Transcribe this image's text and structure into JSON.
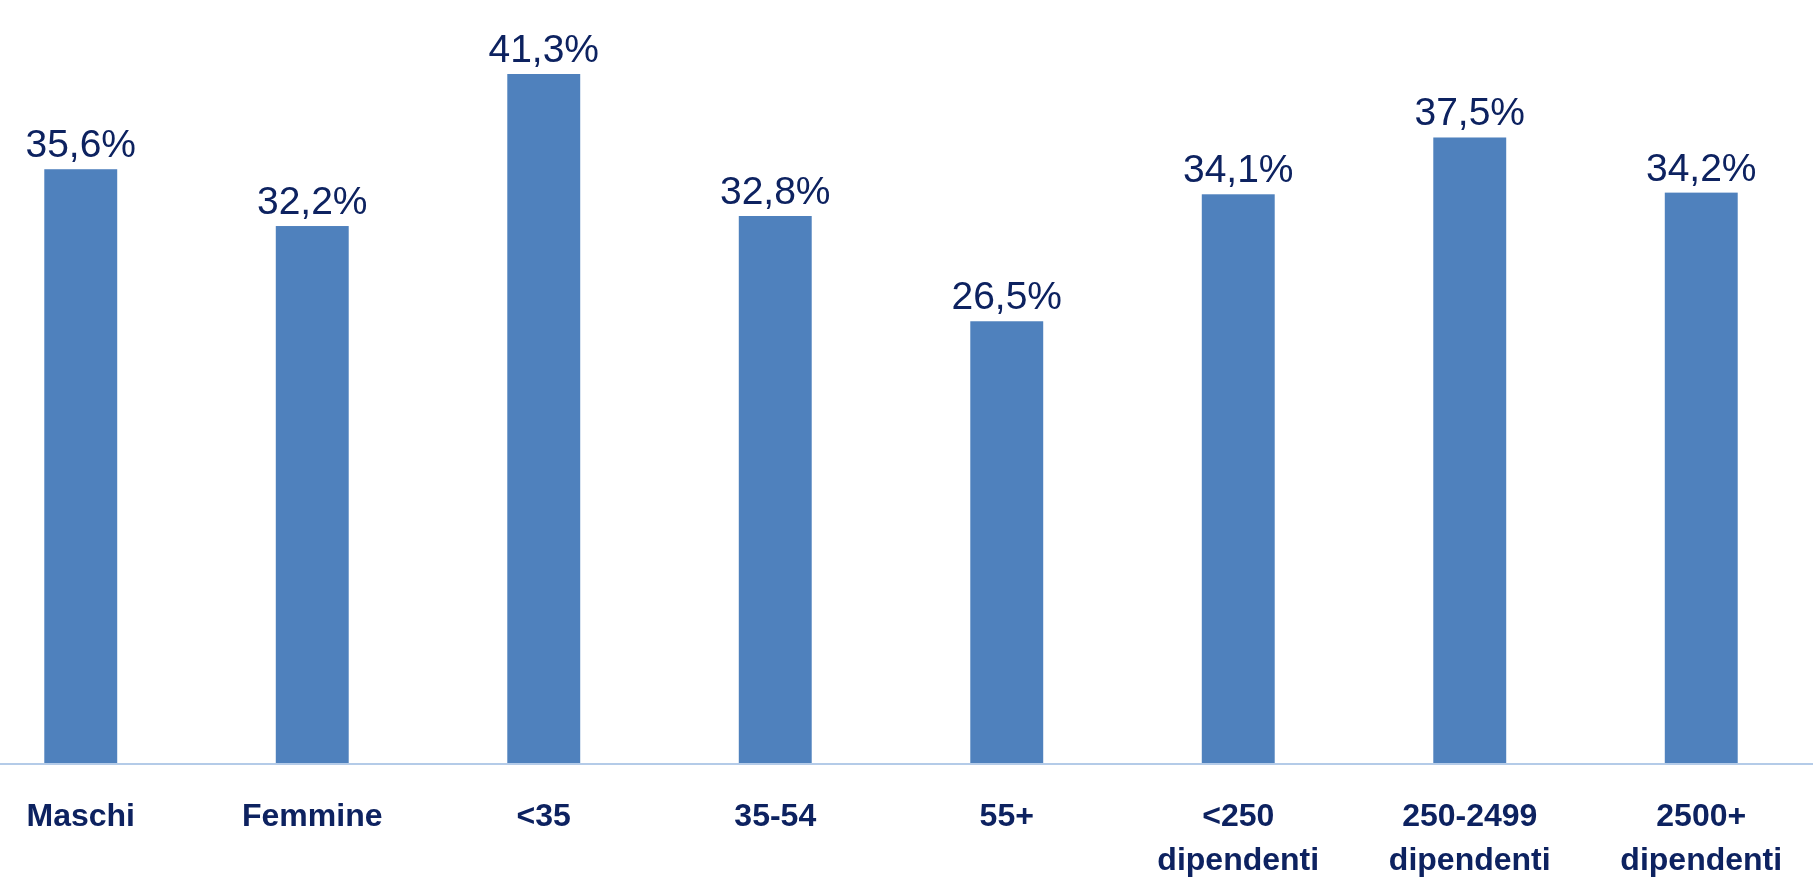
{
  "chart_data": {
    "type": "bar",
    "categories": [
      "Maschi",
      "Femmine",
      "<35",
      "35-54",
      "55+",
      "<250\ndipendenti",
      "250-2499\ndipendenti",
      "2500+\ndipendenti"
    ],
    "values": [
      35.6,
      32.2,
      41.3,
      32.8,
      26.5,
      34.1,
      37.5,
      34.2
    ],
    "value_labels": [
      "35,6%",
      "32,2%",
      "41,3%",
      "32,8%",
      "26,5%",
      "34,1%",
      "37,5%",
      "34,2%"
    ],
    "color": "#4f81bd"
  }
}
